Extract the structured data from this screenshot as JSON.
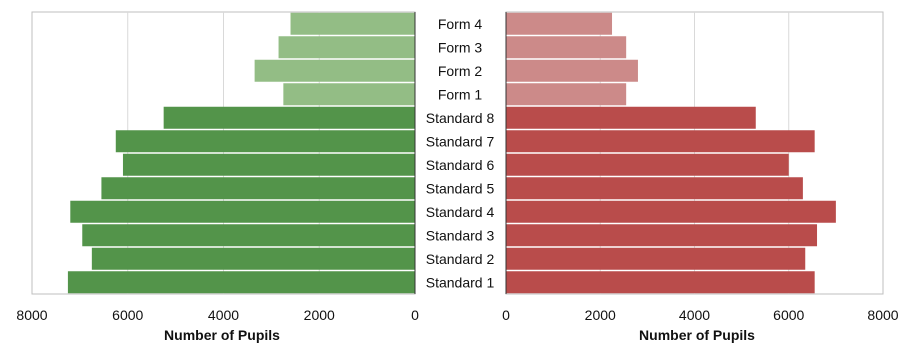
{
  "chart_data": {
    "type": "bar",
    "orientation": "horizontal",
    "layout": "back-to-back (pyramid)",
    "categories": [
      "Form 4",
      "Form 3",
      "Form 2",
      "Form 1",
      "Standard 8",
      "Standard 7",
      "Standard 6",
      "Standard 5",
      "Standard 4",
      "Standard 3",
      "Standard 2",
      "Standard 1"
    ],
    "category_groups": {
      "Form": [
        "Form 4",
        "Form 3",
        "Form 2",
        "Form 1"
      ],
      "Standard": [
        "Standard 8",
        "Standard 7",
        "Standard 6",
        "Standard 5",
        "Standard 4",
        "Standard 3",
        "Standard 2",
        "Standard 1"
      ]
    },
    "series": [
      {
        "side": "left",
        "values": [
          2600,
          2850,
          3350,
          2750,
          5250,
          6250,
          6100,
          6550,
          7200,
          6950,
          6750,
          7250
        ],
        "colors": {
          "Form": "#93bd85",
          "Standard": "#53944a"
        }
      },
      {
        "side": "right",
        "values": [
          2250,
          2550,
          2800,
          2550,
          5300,
          6550,
          6000,
          6300,
          7000,
          6600,
          6350,
          6550
        ],
        "colors": {
          "Form": "#cc8a89",
          "Standard": "#b94c4b"
        }
      }
    ],
    "xlim": [
      0,
      8000
    ],
    "xticks": [
      "8000",
      "6000",
      "4000",
      "2000",
      "0"
    ],
    "xticks_right": [
      "0",
      "2000",
      "4000",
      "6000",
      "8000"
    ],
    "xlabel": "Number of Pupils",
    "xlabel_right": "Number of Pupils",
    "grid": "vertical",
    "gridcolor": "#d9d9d9"
  }
}
